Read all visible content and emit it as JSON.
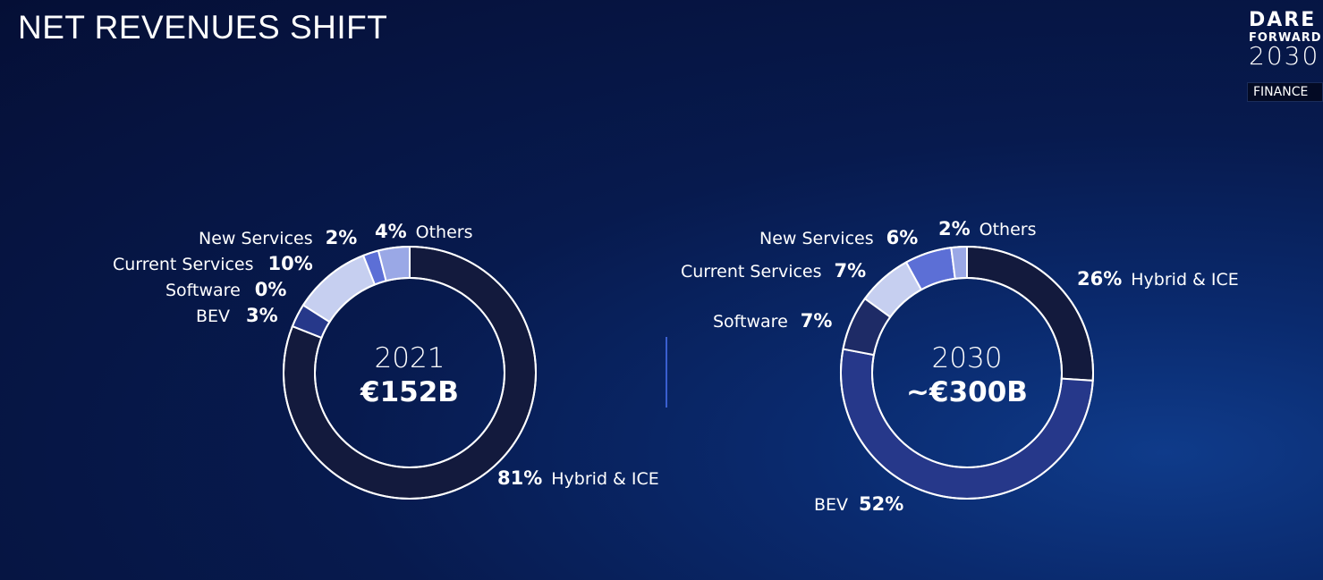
{
  "page": {
    "title": "NET REVENUES SHIFT",
    "logo": {
      "line1": "DARE",
      "line2": "FORWARD",
      "line3": "2030"
    },
    "badge": "FINANCE"
  },
  "colors": {
    "hybrid_ice": "#131a3d",
    "bev": "#26388a",
    "software": "#1e2b66",
    "current_services": "#c6cff0",
    "new_services": "#5c6fd6",
    "others": "#9aa8e6"
  },
  "chart_data": [
    {
      "type": "pie",
      "center_label": "2021",
      "center_value": "€152B",
      "slices": [
        {
          "name": "Hybrid & ICE",
          "value": 81,
          "label": "81%",
          "color": "#131a3d"
        },
        {
          "name": "BEV",
          "value": 3,
          "label": "3%",
          "color": "#26388a"
        },
        {
          "name": "Software",
          "value": 0,
          "label": "0%",
          "color": "#1e2b66"
        },
        {
          "name": "Current Services",
          "value": 10,
          "label": "10%",
          "color": "#c6cff0"
        },
        {
          "name": "New Services",
          "value": 2,
          "label": "2%",
          "color": "#5c6fd6"
        },
        {
          "name": "Others",
          "value": 4,
          "label": "4%",
          "color": "#9aa8e6"
        }
      ]
    },
    {
      "type": "pie",
      "center_label": "2030",
      "center_value": "~€300B",
      "slices": [
        {
          "name": "Hybrid & ICE",
          "value": 26,
          "label": "26%",
          "color": "#131a3d"
        },
        {
          "name": "BEV",
          "value": 52,
          "label": "52%",
          "color": "#26388a"
        },
        {
          "name": "Software",
          "value": 7,
          "label": "7%",
          "color": "#1e2b66"
        },
        {
          "name": "Current Services",
          "value": 7,
          "label": "7%",
          "color": "#c6cff0"
        },
        {
          "name": "New Services",
          "value": 6,
          "label": "6%",
          "color": "#5c6fd6"
        },
        {
          "name": "Others",
          "value": 2,
          "label": "2%",
          "color": "#9aa8e6"
        }
      ]
    }
  ]
}
